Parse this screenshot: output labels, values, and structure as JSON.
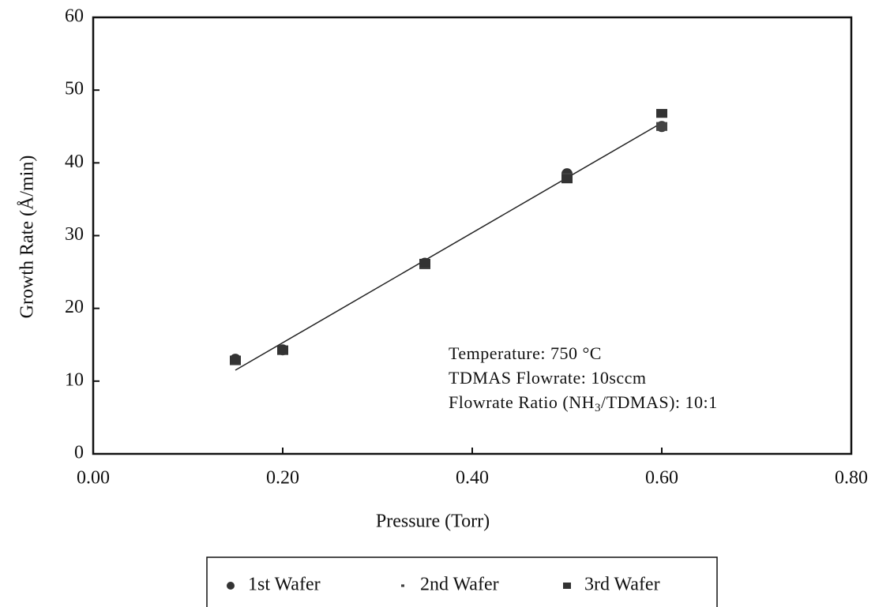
{
  "chart_data": {
    "type": "scatter",
    "xlabel": "Pressure (Torr)",
    "ylabel": "Growth Rate (Å/min)",
    "xlim": [
      0,
      0.8
    ],
    "ylim": [
      0,
      60
    ],
    "xticks": [
      {
        "value": 0,
        "label": "0.00"
      },
      {
        "value": 0.2,
        "label": "0.20"
      },
      {
        "value": 0.4,
        "label": "0.40"
      },
      {
        "value": 0.6,
        "label": "0.60"
      },
      {
        "value": 0.8,
        "label": "0.80"
      }
    ],
    "yticks": [
      0,
      10,
      20,
      30,
      40,
      50,
      60
    ],
    "series": [
      {
        "name": "1st Wafer",
        "color": "#333333",
        "marker": "circle",
        "x": [
          0.15,
          0.2,
          0.35,
          0.5,
          0.6
        ],
        "values": [
          13,
          14.3,
          26.2,
          38.5,
          45
        ]
      },
      {
        "name": "2nd Wafer",
        "color": "#444444",
        "marker": "square",
        "x": [
          0.15,
          0.2,
          0.35,
          0.5,
          0.6
        ],
        "values": [
          12.8,
          14.2,
          26,
          38,
          45
        ]
      },
      {
        "name": "3rd Wafer",
        "color": "#333333",
        "marker": "square",
        "x": [
          0.15,
          0.2,
          0.35,
          0.5,
          0.6
        ],
        "values": [
          12.9,
          14.3,
          26.2,
          37.8,
          46.8
        ]
      }
    ],
    "fit_line": {
      "x": [
        0.15,
        0.6
      ],
      "values": [
        11.5,
        45.5
      ],
      "color": "#222222"
    },
    "annotations": [
      [
        "Temperature: 750 °C"
      ],
      [
        "TDMAS Flowrate: 10sccm"
      ],
      [
        "Flowrate Ratio (NH",
        "3",
        "/TDMAS): 10:1"
      ]
    ]
  }
}
